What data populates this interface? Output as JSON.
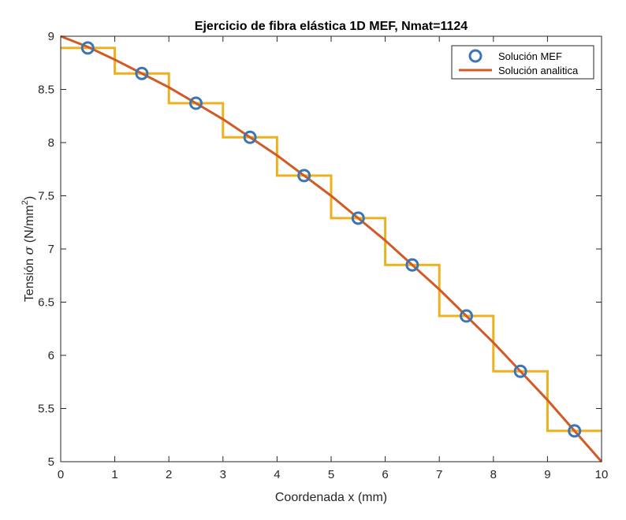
{
  "chart_data": {
    "type": "line",
    "title": "Ejercicio de fibra elástica 1D MEF, Nmat=1124",
    "xlabel": "Coordenada x (mm)",
    "ylabel_prefix": "Tensión ",
    "ylabel_symbol": "σ",
    "ylabel_unit_open": " (N/mm",
    "ylabel_unit_sup": "2",
    "ylabel_unit_close": ")",
    "xlim": [
      0,
      10
    ],
    "ylim": [
      5,
      9
    ],
    "xticks": [
      0,
      1,
      2,
      3,
      4,
      5,
      6,
      7,
      8,
      9,
      10
    ],
    "xtick_labels": [
      "0",
      "1",
      "2",
      "3",
      "4",
      "5",
      "6",
      "7",
      "8",
      "9",
      "10"
    ],
    "yticks": [
      5,
      5.5,
      6,
      6.5,
      7,
      7.5,
      8,
      8.5,
      9
    ],
    "ytick_labels": [
      "5",
      "5.5",
      "6",
      "6.5",
      "7",
      "7.5",
      "8",
      "8.5",
      "9"
    ],
    "grid": false,
    "legend_location": "top-right",
    "series": [
      {
        "name": "Solución MEF",
        "kind": "markers",
        "marker": "circle",
        "color": "#3A75B4",
        "x": [
          0.5,
          1.5,
          2.5,
          3.5,
          4.5,
          5.5,
          6.5,
          7.5,
          8.5,
          9.5
        ],
        "y": [
          8.89,
          8.65,
          8.37,
          8.05,
          7.69,
          7.29,
          6.85,
          6.37,
          5.85,
          5.29
        ]
      },
      {
        "name": "Solución analitica",
        "kind": "line",
        "color": "#D15A25",
        "x": [
          0,
          0.5,
          1,
          1.5,
          2,
          2.5,
          3,
          3.5,
          4,
          4.5,
          5,
          5.5,
          6,
          6.5,
          7,
          7.5,
          8,
          8.5,
          9,
          9.5,
          10
        ],
        "y": [
          9,
          8.9,
          8.78,
          8.65,
          8.52,
          8.37,
          8.22,
          8.05,
          7.88,
          7.69,
          7.5,
          7.29,
          7.08,
          6.85,
          6.62,
          6.37,
          6.12,
          5.85,
          5.58,
          5.29,
          5
        ]
      },
      {
        "kind": "step",
        "color": "#EDB120",
        "x_edges": [
          0,
          1,
          2,
          3,
          4,
          5,
          6,
          7,
          8,
          9,
          10
        ],
        "y": [
          8.89,
          8.65,
          8.37,
          8.05,
          7.69,
          7.29,
          6.85,
          6.37,
          5.85,
          5.29
        ]
      }
    ]
  }
}
